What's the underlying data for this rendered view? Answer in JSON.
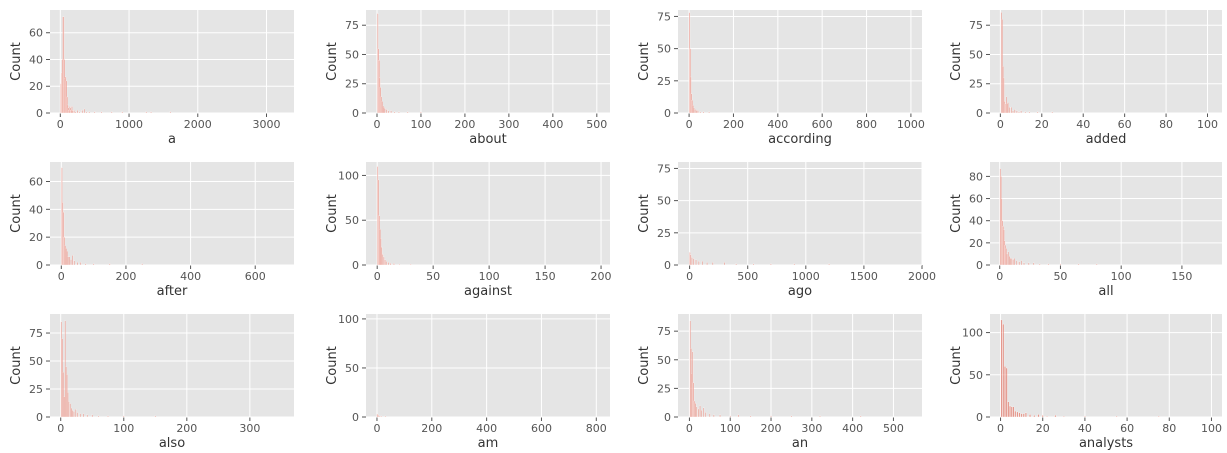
{
  "figure": {
    "style": "ggplot",
    "panel_color": "#E5E5E5",
    "bar_color": "#E24A33",
    "grid_color": "#FFFFFF"
  },
  "chart_data": [
    {
      "type": "bar",
      "xlabel": "a",
      "ylabel": "Count",
      "xlim": [
        -150,
        3400
      ],
      "ylim": [
        0,
        77
      ],
      "xticks": [
        0,
        1000,
        2000,
        3000
      ],
      "yticks": [
        0,
        20,
        40,
        60
      ],
      "bin_width": 10,
      "bars": [
        [
          10,
          22
        ],
        [
          20,
          30
        ],
        [
          30,
          40
        ],
        [
          40,
          72
        ],
        [
          50,
          72
        ],
        [
          60,
          40
        ],
        [
          70,
          26
        ],
        [
          80,
          27
        ],
        [
          90,
          24
        ],
        [
          100,
          12
        ],
        [
          110,
          6
        ],
        [
          120,
          4
        ],
        [
          130,
          2
        ],
        [
          140,
          5
        ],
        [
          150,
          4
        ],
        [
          160,
          2
        ],
        [
          170,
          5
        ],
        [
          180,
          2
        ],
        [
          200,
          2
        ],
        [
          220,
          1
        ],
        [
          250,
          2
        ],
        [
          280,
          1
        ],
        [
          320,
          2
        ],
        [
          350,
          3
        ],
        [
          380,
          1
        ],
        [
          420,
          1
        ],
        [
          500,
          1
        ],
        [
          600,
          1
        ],
        [
          750,
          1
        ],
        [
          900,
          1
        ],
        [
          1250,
          1
        ],
        [
          1320,
          1
        ],
        [
          1600,
          1
        ]
      ]
    },
    {
      "type": "bar",
      "xlabel": "about",
      "ylabel": "Count",
      "xlim": [
        -25,
        530
      ],
      "ylim": [
        0,
        88
      ],
      "xticks": [
        0,
        100,
        200,
        300,
        400,
        500
      ],
      "yticks": [
        0,
        25,
        50,
        75
      ],
      "bin_width": 1.6,
      "bars": [
        [
          2,
          85
        ],
        [
          3.5,
          55
        ],
        [
          5,
          45
        ],
        [
          6.5,
          30
        ],
        [
          8,
          22
        ],
        [
          10,
          14
        ],
        [
          12,
          10
        ],
        [
          14,
          6
        ],
        [
          16,
          5
        ],
        [
          18,
          4
        ],
        [
          22,
          3
        ],
        [
          26,
          2
        ],
        [
          32,
          2
        ],
        [
          40,
          1
        ],
        [
          50,
          1
        ],
        [
          70,
          1
        ],
        [
          100,
          1
        ]
      ]
    },
    {
      "type": "bar",
      "xlabel": "according",
      "ylabel": "Count",
      "xlim": [
        -50,
        1050
      ],
      "ylim": [
        0,
        80
      ],
      "xticks": [
        0,
        200,
        400,
        600,
        800,
        1000
      ],
      "yticks": [
        0,
        25,
        50,
        75
      ],
      "bin_width": 3.2,
      "bars": [
        [
          2,
          78
        ],
        [
          5,
          50
        ],
        [
          8,
          28
        ],
        [
          11,
          15
        ],
        [
          14,
          10
        ],
        [
          18,
          6
        ],
        [
          22,
          4
        ],
        [
          27,
          3
        ],
        [
          33,
          2
        ],
        [
          40,
          2
        ],
        [
          50,
          1
        ],
        [
          65,
          1
        ],
        [
          90,
          1
        ]
      ]
    },
    {
      "type": "bar",
      "xlabel": "added",
      "ylabel": "Count",
      "xlim": [
        -5,
        107
      ],
      "ylim": [
        0,
        88
      ],
      "xticks": [
        0,
        20,
        40,
        60,
        80,
        100
      ],
      "yticks": [
        0,
        25,
        50,
        75
      ],
      "bin_width": 0.3,
      "bars": [
        [
          0.5,
          86
        ],
        [
          0.9,
          80
        ],
        [
          1.3,
          40
        ],
        [
          1.7,
          30
        ],
        [
          2.1,
          10
        ],
        [
          2.5,
          8
        ],
        [
          2.9,
          14
        ],
        [
          3.3,
          8
        ],
        [
          3.7,
          9
        ],
        [
          4.5,
          5
        ],
        [
          5.3,
          5
        ],
        [
          6.1,
          2
        ],
        [
          7,
          3
        ],
        [
          8,
          2
        ],
        [
          9,
          1
        ],
        [
          10,
          2
        ],
        [
          12,
          1
        ],
        [
          14,
          1
        ],
        [
          18,
          1
        ],
        [
          25,
          1
        ]
      ]
    },
    {
      "type": "bar",
      "xlabel": "after",
      "ylabel": "Count",
      "xlim": [
        -35,
        720
      ],
      "ylim": [
        0,
        74
      ],
      "xticks": [
        0,
        200,
        400,
        600
      ],
      "yticks": [
        0,
        20,
        40,
        60
      ],
      "bin_width": 2.2,
      "bars": [
        [
          2,
          70
        ],
        [
          4.5,
          45
        ],
        [
          7,
          38
        ],
        [
          9.5,
          20
        ],
        [
          12,
          14
        ],
        [
          15,
          12
        ],
        [
          18,
          10
        ],
        [
          21,
          6
        ],
        [
          25,
          6
        ],
        [
          30,
          4
        ],
        [
          35,
          7
        ],
        [
          40,
          3
        ],
        [
          50,
          2
        ],
        [
          60,
          2
        ],
        [
          75,
          1
        ],
        [
          100,
          1
        ],
        [
          150,
          1
        ],
        [
          250,
          1
        ]
      ]
    },
    {
      "type": "bar",
      "xlabel": "against",
      "ylabel": "Count",
      "xlim": [
        -10,
        208
      ],
      "ylim": [
        0,
        115
      ],
      "xticks": [
        0,
        50,
        100,
        150,
        200
      ],
      "yticks": [
        0,
        50,
        100
      ],
      "bin_width": 0.6,
      "bars": [
        [
          0.5,
          110
        ],
        [
          1.2,
          95
        ],
        [
          1.9,
          55
        ],
        [
          2.6,
          40
        ],
        [
          3.3,
          30
        ],
        [
          4,
          20
        ],
        [
          5,
          12
        ],
        [
          6,
          9
        ],
        [
          7,
          6
        ],
        [
          8,
          4
        ],
        [
          10,
          3
        ],
        [
          12,
          2
        ],
        [
          15,
          2
        ],
        [
          20,
          1
        ],
        [
          30,
          1
        ]
      ]
    },
    {
      "type": "bar",
      "xlabel": "ago",
      "ylabel": "Count",
      "xlim": [
        -100,
        2000
      ],
      "ylim": [
        0,
        80
      ],
      "xticks": [
        0,
        500,
        1000,
        1500,
        2000
      ],
      "yticks": [
        0,
        25,
        50,
        75
      ],
      "bin_width": 6,
      "bars": [
        [
          3,
          10
        ],
        [
          10,
          8
        ],
        [
          20,
          6
        ],
        [
          35,
          5
        ],
        [
          55,
          4
        ],
        [
          80,
          3
        ],
        [
          110,
          3
        ],
        [
          150,
          2
        ],
        [
          200,
          2
        ],
        [
          300,
          2
        ],
        [
          400,
          1
        ],
        [
          550,
          1
        ],
        [
          700,
          1
        ],
        [
          900,
          1
        ],
        [
          1200,
          1
        ]
      ]
    },
    {
      "type": "bar",
      "xlabel": "all",
      "ylabel": "Count",
      "xlim": [
        -8,
        183
      ],
      "ylim": [
        0,
        93
      ],
      "xticks": [
        0,
        50,
        100,
        150
      ],
      "yticks": [
        0,
        20,
        40,
        60,
        80
      ],
      "bin_width": 0.5,
      "bars": [
        [
          0.5,
          87
        ],
        [
          1.1,
          80
        ],
        [
          1.7,
          60
        ],
        [
          2.3,
          40
        ],
        [
          2.9,
          35
        ],
        [
          3.5,
          32
        ],
        [
          4.1,
          22
        ],
        [
          4.7,
          18
        ],
        [
          5.3,
          15
        ],
        [
          6,
          10
        ],
        [
          7,
          12
        ],
        [
          8,
          8
        ],
        [
          9,
          6
        ],
        [
          10,
          6
        ],
        [
          11,
          5
        ],
        [
          12,
          6
        ],
        [
          14,
          4
        ],
        [
          16,
          3
        ],
        [
          18,
          4
        ],
        [
          20,
          2
        ],
        [
          24,
          2
        ],
        [
          28,
          2
        ],
        [
          33,
          1
        ],
        [
          40,
          1
        ],
        [
          50,
          1
        ],
        [
          65,
          1
        ],
        [
          80,
          1
        ]
      ]
    },
    {
      "type": "bar",
      "xlabel": "also",
      "ylabel": "Count",
      "xlim": [
        -17,
        370
      ],
      "ylim": [
        0,
        92
      ],
      "xticks": [
        0,
        100,
        200,
        300
      ],
      "yticks": [
        0,
        25,
        50,
        75
      ],
      "bin_width": 1.1,
      "bars": [
        [
          1,
          85
        ],
        [
          2.5,
          70
        ],
        [
          4,
          40
        ],
        [
          5.5,
          18
        ],
        [
          7,
          86
        ],
        [
          8.5,
          45
        ],
        [
          10,
          38
        ],
        [
          11.5,
          22
        ],
        [
          13,
          14
        ],
        [
          15,
          12
        ],
        [
          17,
          8
        ],
        [
          19,
          6
        ],
        [
          21,
          5
        ],
        [
          24,
          7
        ],
        [
          27,
          4
        ],
        [
          31,
          3
        ],
        [
          36,
          3
        ],
        [
          42,
          2
        ],
        [
          50,
          2
        ],
        [
          60,
          1
        ],
        [
          75,
          1
        ],
        [
          100,
          1
        ],
        [
          150,
          1
        ]
      ]
    },
    {
      "type": "bar",
      "xlabel": "am",
      "ylabel": "Count",
      "xlim": [
        -40,
        850
      ],
      "ylim": [
        0,
        105
      ],
      "xticks": [
        0,
        200,
        400,
        600,
        800
      ],
      "yticks": [
        0,
        50,
        100
      ],
      "bin_width": 2.6,
      "bars": [
        [
          1,
          3
        ],
        [
          4,
          2
        ],
        [
          8,
          1
        ],
        [
          15,
          1
        ],
        [
          30,
          1
        ]
      ]
    },
    {
      "type": "bar",
      "xlabel": "an",
      "ylabel": "Count",
      "xlim": [
        -28,
        570
      ],
      "ylim": [
        0,
        90
      ],
      "xticks": [
        0,
        100,
        200,
        300,
        400,
        500
      ],
      "yticks": [
        0,
        25,
        50,
        75
      ],
      "bin_width": 2,
      "bars": [
        [
          2,
          84
        ],
        [
          4,
          60
        ],
        [
          6,
          38
        ],
        [
          8,
          57
        ],
        [
          10,
          30
        ],
        [
          12,
          14
        ],
        [
          15,
          12
        ],
        [
          18,
          9
        ],
        [
          22,
          7
        ],
        [
          26,
          10
        ],
        [
          30,
          6
        ],
        [
          35,
          8
        ],
        [
          40,
          4
        ],
        [
          50,
          3
        ],
        [
          60,
          2
        ],
        [
          75,
          2
        ],
        [
          100,
          1
        ],
        [
          120,
          2
        ],
        [
          150,
          1
        ],
        [
          200,
          1
        ],
        [
          250,
          1
        ],
        [
          320,
          1
        ],
        [
          420,
          1
        ]
      ]
    },
    {
      "type": "bar",
      "xlabel": "analysts",
      "ylabel": "Count",
      "xlim": [
        -5,
        105
      ],
      "ylim": [
        0,
        122
      ],
      "xticks": [
        0,
        20,
        40,
        60,
        80,
        100
      ],
      "yticks": [
        0,
        50,
        100
      ],
      "bin_width": 0.7,
      "bars": [
        [
          0.5,
          115
        ],
        [
          1.3,
          110
        ],
        [
          2.1,
          60
        ],
        [
          2.9,
          58
        ],
        [
          3.7,
          18
        ],
        [
          4.5,
          13
        ],
        [
          5.3,
          12
        ],
        [
          6.1,
          12
        ],
        [
          7,
          7
        ],
        [
          8,
          6
        ],
        [
          9,
          5
        ],
        [
          10,
          4
        ],
        [
          11,
          4
        ],
        [
          12,
          5
        ],
        [
          14,
          3
        ],
        [
          16,
          2
        ],
        [
          18,
          3
        ],
        [
          20,
          2
        ],
        [
          22,
          1
        ],
        [
          26,
          2
        ],
        [
          30,
          1
        ],
        [
          40,
          1
        ],
        [
          55,
          1
        ],
        [
          75,
          1
        ]
      ]
    }
  ]
}
